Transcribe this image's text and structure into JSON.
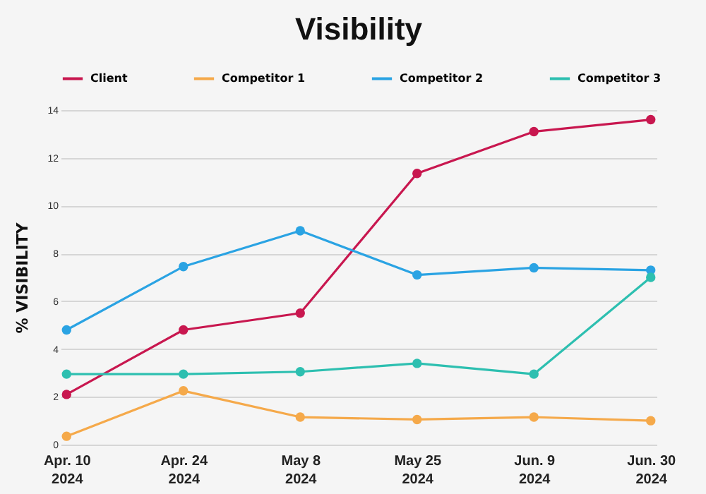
{
  "chart_data": {
    "type": "line",
    "title": "Visibility",
    "ylabel": "% VISIBILITY",
    "categories": [
      "Apr. 10\n2024",
      "Apr. 24\n2024",
      "May 8\n2024",
      "May 25\n2024",
      "Jun. 9\n2024",
      "Jun. 30\n2024"
    ],
    "series": [
      {
        "name": "Client",
        "color": "#c8174f",
        "values": [
          2.1,
          4.8,
          5.5,
          11.35,
          13.1,
          13.6
        ]
      },
      {
        "name": "Competitor 1",
        "color": "#f5a94a",
        "values": [
          0.35,
          2.25,
          1.15,
          1.05,
          1.15,
          1.0
        ]
      },
      {
        "name": "Competitor 2",
        "color": "#2aa3e3",
        "values": [
          4.8,
          7.45,
          8.95,
          7.1,
          7.4,
          7.3
        ]
      },
      {
        "name": "Competitor 3",
        "color": "#2dbfb0",
        "values": [
          2.95,
          2.95,
          3.05,
          3.4,
          2.95,
          7.0
        ]
      }
    ],
    "ylim": [
      0,
      14
    ],
    "yticks": [
      0,
      2,
      4,
      6,
      8,
      10,
      12,
      14
    ],
    "grid": "y",
    "legend": "top",
    "marker": "circle",
    "line_style": "solid"
  }
}
